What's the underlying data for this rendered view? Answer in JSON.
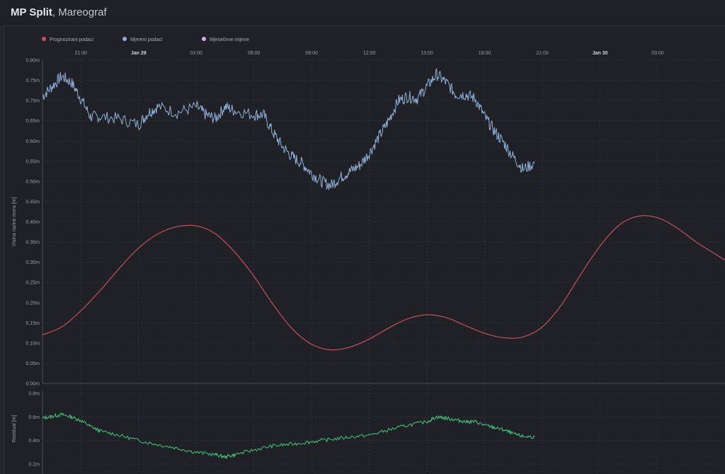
{
  "header": {
    "title_bold": "MP Split",
    "title_rest": ", Mareograf"
  },
  "colors": {
    "background": "#1f2126",
    "predicted": "#c5505c",
    "measured": "#8fb0d8",
    "moon": "#d7a8e8",
    "residual": "#3ec87a",
    "grid": "#3a3d44",
    "text": "#9a9ea6"
  },
  "chart_data": [
    {
      "type": "line",
      "legend": [
        "Prognozirani podaci",
        "Mjereni podaci",
        "Mjesečeve mijene"
      ],
      "legend_placement": "top-left",
      "ylabel": "Visina razine mora [m]",
      "ylim": [
        0,
        0.8
      ],
      "yticks": [
        "0.00m",
        "0.05m",
        "0.10m",
        "0.15m",
        "0.20m",
        "0.25m",
        "0.30m",
        "0.35m",
        "0.40m",
        "0.45m",
        "0.50m",
        "0.55m",
        "0.60m",
        "0.65m",
        "0.70m",
        "0.75m",
        "0.80m"
      ],
      "x_unit": "hours since Jan 28 19:00",
      "xlim": [
        0,
        35.5
      ],
      "xticks": [
        {
          "x": 2,
          "label": "21:00",
          "bold": false
        },
        {
          "x": 5,
          "label": "Jan 29",
          "bold": true
        },
        {
          "x": 8,
          "label": "03:00",
          "bold": false
        },
        {
          "x": 11,
          "label": "06:00",
          "bold": false
        },
        {
          "x": 14,
          "label": "09:00",
          "bold": false
        },
        {
          "x": 17,
          "label": "12:00",
          "bold": false
        },
        {
          "x": 20,
          "label": "15:00",
          "bold": false
        },
        {
          "x": 23,
          "label": "18:00",
          "bold": false
        },
        {
          "x": 26,
          "label": "21:00",
          "bold": false
        },
        {
          "x": 29,
          "label": "Jan 30",
          "bold": true
        },
        {
          "x": 32,
          "label": "03:00",
          "bold": false
        }
      ],
      "grid": true,
      "series": [
        {
          "name": "Prognozirani podaci",
          "color": "#c5505c",
          "points": [
            [
              0,
              0.12
            ],
            [
              1,
              0.14
            ],
            [
              2,
              0.18
            ],
            [
              3,
              0.23
            ],
            [
              4,
              0.285
            ],
            [
              5,
              0.335
            ],
            [
              6,
              0.37
            ],
            [
              7,
              0.388
            ],
            [
              8,
              0.39
            ],
            [
              9,
              0.37
            ],
            [
              10,
              0.325
            ],
            [
              11,
              0.265
            ],
            [
              12,
              0.195
            ],
            [
              13,
              0.135
            ],
            [
              14,
              0.097
            ],
            [
              15,
              0.083
            ],
            [
              16,
              0.09
            ],
            [
              17,
              0.11
            ],
            [
              18,
              0.137
            ],
            [
              19,
              0.16
            ],
            [
              20,
              0.17
            ],
            [
              21,
              0.163
            ],
            [
              22,
              0.143
            ],
            [
              23,
              0.124
            ],
            [
              24,
              0.113
            ],
            [
              25,
              0.115
            ],
            [
              26,
              0.14
            ],
            [
              27,
              0.195
            ],
            [
              28,
              0.27
            ],
            [
              29,
              0.34
            ],
            [
              30,
              0.392
            ],
            [
              31,
              0.414
            ],
            [
              32,
              0.41
            ],
            [
              33,
              0.385
            ],
            [
              34,
              0.35
            ],
            [
              35,
              0.32
            ],
            [
              35.5,
              0.305
            ]
          ]
        },
        {
          "name": "Mjereni podaci",
          "color": "#8fb0d8",
          "points": [
            [
              0,
              0.71
            ],
            [
              0.5,
              0.735
            ],
            [
              1,
              0.76
            ],
            [
              1.5,
              0.745
            ],
            [
              2,
              0.705
            ],
            [
              2.5,
              0.66
            ],
            [
              3,
              0.66
            ],
            [
              4,
              0.655
            ],
            [
              5,
              0.64
            ],
            [
              5.5,
              0.67
            ],
            [
              6,
              0.685
            ],
            [
              7,
              0.67
            ],
            [
              8,
              0.685
            ],
            [
              8.5,
              0.665
            ],
            [
              9,
              0.655
            ],
            [
              9.5,
              0.685
            ],
            [
              10,
              0.675
            ],
            [
              11,
              0.665
            ],
            [
              11.5,
              0.665
            ],
            [
              12,
              0.62
            ],
            [
              12.5,
              0.585
            ],
            [
              13,
              0.56
            ],
            [
              13.5,
              0.545
            ],
            [
              14,
              0.52
            ],
            [
              14.5,
              0.5
            ],
            [
              15,
              0.49
            ],
            [
              15.5,
              0.51
            ],
            [
              16,
              0.525
            ],
            [
              16.5,
              0.54
            ],
            [
              17,
              0.57
            ],
            [
              17.5,
              0.61
            ],
            [
              18,
              0.65
            ],
            [
              18.5,
              0.7
            ],
            [
              19,
              0.71
            ],
            [
              19.5,
              0.705
            ],
            [
              20,
              0.735
            ],
            [
              20.5,
              0.765
            ],
            [
              21,
              0.745
            ],
            [
              21.5,
              0.715
            ],
            [
              22,
              0.715
            ],
            [
              22.5,
              0.705
            ],
            [
              23,
              0.66
            ],
            [
              23.5,
              0.625
            ],
            [
              24,
              0.595
            ],
            [
              24.5,
              0.56
            ],
            [
              25,
              0.53
            ],
            [
              25.6,
              0.545
            ]
          ]
        }
      ]
    },
    {
      "type": "line",
      "ylabel": "Rezidual [m]",
      "ylim": [
        0.2,
        0.8
      ],
      "yticks": [
        "0.2m",
        "0.4m",
        "0.6m",
        "0.8m"
      ],
      "xlim": [
        0,
        35.5
      ],
      "grid": true,
      "series": [
        {
          "color": "#3ec87a",
          "points": [
            [
              0,
              0.59
            ],
            [
              0.5,
              0.605
            ],
            [
              1,
              0.62
            ],
            [
              1.5,
              0.6
            ],
            [
              2,
              0.57
            ],
            [
              2.5,
              0.52
            ],
            [
              3,
              0.48
            ],
            [
              4,
              0.445
            ],
            [
              5,
              0.4
            ],
            [
              6,
              0.365
            ],
            [
              7,
              0.335
            ],
            [
              8,
              0.3
            ],
            [
              9,
              0.28
            ],
            [
              9.5,
              0.26
            ],
            [
              10,
              0.28
            ],
            [
              11,
              0.32
            ],
            [
              12,
              0.355
            ],
            [
              13,
              0.37
            ],
            [
              14,
              0.39
            ],
            [
              15,
              0.41
            ],
            [
              16,
              0.43
            ],
            [
              17,
              0.445
            ],
            [
              18,
              0.49
            ],
            [
              19,
              0.53
            ],
            [
              20,
              0.56
            ],
            [
              20.5,
              0.6
            ],
            [
              21,
              0.59
            ],
            [
              21.5,
              0.575
            ],
            [
              22,
              0.56
            ],
            [
              22.5,
              0.56
            ],
            [
              23,
              0.53
            ],
            [
              23.5,
              0.51
            ],
            [
              24,
              0.49
            ],
            [
              24.5,
              0.455
            ],
            [
              25,
              0.435
            ],
            [
              25.6,
              0.43
            ]
          ]
        }
      ]
    }
  ]
}
